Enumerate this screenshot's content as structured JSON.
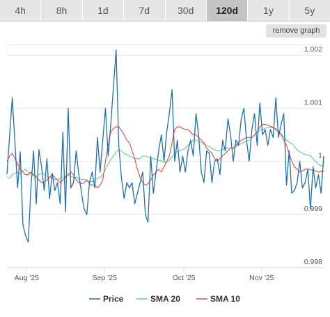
{
  "tabs": [
    {
      "label": "4h",
      "active": false
    },
    {
      "label": "8h",
      "active": false
    },
    {
      "label": "1d",
      "active": false
    },
    {
      "label": "7d",
      "active": false
    },
    {
      "label": "30d",
      "active": false
    },
    {
      "label": "120d",
      "active": true
    },
    {
      "label": "1y",
      "active": false
    },
    {
      "label": "5y",
      "active": false
    }
  ],
  "remove_graph_label": "remove graph",
  "chart_data": {
    "type": "line",
    "ylim": [
      0.998,
      1.0022
    ],
    "xlim": [
      0,
      120
    ],
    "y_ticks": [
      {
        "value": 0.998,
        "label": "0.998"
      },
      {
        "value": 0.999,
        "label": "0.999"
      },
      {
        "value": 1.0,
        "label": "1"
      },
      {
        "value": 1.001,
        "label": "1.001"
      },
      {
        "value": 1.002,
        "label": "1.002"
      }
    ],
    "x_ticks": [
      {
        "value": 7.5,
        "label": "Aug '25"
      },
      {
        "value": 37,
        "label": "Sep '25"
      },
      {
        "value": 67,
        "label": "Oct '25"
      },
      {
        "value": 96.5,
        "label": "Nov '25"
      }
    ],
    "grid": true,
    "legend_position": "bottom",
    "series": [
      {
        "name": "Price",
        "color": "#1f6fb0",
        "values": [
          0.99976,
          1.00048,
          1.0012,
          1.00034,
          0.9995,
          1.00018,
          0.9988,
          0.9986,
          0.99848,
          0.9995,
          1.0002,
          0.9992,
          1.00022,
          0.9999,
          0.99945,
          1.00005,
          0.9993,
          0.99978,
          0.99945,
          0.9996,
          0.9992,
          1.00055,
          0.99905,
          1.001,
          0.9995,
          0.9996,
          1.0002,
          0.99975,
          0.9994,
          0.9991,
          0.999,
          0.9996,
          0.9998,
          0.9995,
          1.00045,
          0.9998,
          1.0004,
          1.001,
          1.0001,
          1.0007,
          1.0014,
          1.0021,
          1.0003,
          0.9997,
          0.9993,
          0.9996,
          0.9995,
          0.9996,
          0.9992,
          0.9994,
          0.9996,
          0.9998,
          0.999,
          0.99885,
          1.0001,
          0.9994,
          0.9998,
          1.0002,
          1.0005,
          1.0,
          1.00055,
          1.0009,
          1.00135,
          1.0,
          1.0004,
          0.9998,
          1.0001,
          0.9998,
          1.0002,
          1.0004,
          1.0001,
          1.0009,
          1.0005,
          0.9998,
          0.9996,
          1.0002,
          1.00015,
          0.9996,
          1.0,
          1.00005,
          0.99975,
          1.0004,
          1.0002,
          1.0008,
          1.0005,
          1.0,
          1.0004,
          1.0003,
          1.0008,
          1.001,
          1.0004,
          1.0,
          1.0006,
          1.0009,
          1.0003,
          1.0011,
          1.0005,
          1.0006,
          1.0003,
          1.0006,
          1.00045,
          1.0012,
          1.00045,
          1.0007,
          1.0009,
          0.99955,
          1.0002,
          0.9994,
          0.99945,
          0.9996,
          1.0,
          0.9995,
          0.9996,
          0.99985,
          0.9991,
          0.9999,
          0.9995,
          0.99975,
          0.9994,
          1.0001
        ]
      },
      {
        "name": "SMA 20",
        "color": "#5fd08a",
        "values": [
          0.9997,
          0.99968,
          0.99975,
          0.99978,
          0.9998,
          0.99976,
          0.99982,
          0.99985,
          0.9998,
          0.99977,
          0.99973,
          0.99972,
          0.99975,
          0.99978,
          0.99976,
          0.99972,
          0.9997,
          0.99968,
          0.99966,
          0.99966,
          0.99968,
          0.9997,
          0.99972,
          0.99975,
          0.99972,
          0.9997,
          0.9997,
          0.99968,
          0.99966,
          0.99966,
          0.99965,
          0.99962,
          0.99962,
          0.99964,
          0.99968,
          0.9997,
          0.99975,
          0.99985,
          0.99995,
          1.00003,
          1.0001,
          1.00018,
          1.00022,
          1.0002,
          1.00015,
          1.00012,
          1.0001,
          1.00008,
          1.00005,
          1.00005,
          1.00005,
          1.0001,
          1.0001,
          1.00008,
          1.00006,
          1.00005,
          1.00004,
          1.00002,
          1.00001,
          0.99998,
          0.99998,
          1.00002,
          1.00008,
          1.00015,
          1.00018,
          1.0002,
          1.00022,
          1.00025,
          1.0003,
          1.00035,
          1.0004,
          1.0004,
          1.00038,
          1.00036,
          1.00033,
          1.0003,
          1.00028,
          1.00025,
          1.00022,
          1.0002,
          1.0002,
          1.00022,
          1.00024,
          1.00026,
          1.00025,
          1.00024,
          1.00028,
          1.0003,
          1.00034,
          1.00036,
          1.00038,
          1.0004,
          1.00045,
          1.0005,
          1.00055,
          1.00058,
          1.0006,
          1.00062,
          1.00064,
          1.00064,
          1.00063,
          1.00062,
          1.00057,
          1.00052,
          1.00046,
          1.0004,
          1.00036,
          1.00034,
          1.00028,
          1.00022,
          1.00018,
          1.00015,
          1.00013,
          1.00012,
          1.0001,
          1.00005,
          1.0,
          0.99994,
          0.99992,
          0.9999
        ]
      },
      {
        "name": "SMA 10",
        "color": "#e24a44",
        "values": [
          1.0,
          1.0001,
          1.00015,
          1.00005,
          0.99995,
          0.99985,
          0.9998,
          0.99975,
          0.99975,
          0.9998,
          0.99975,
          0.9997,
          0.99965,
          0.9996,
          0.9996,
          0.99965,
          0.9997,
          0.99975,
          0.9997,
          0.99965,
          0.9996,
          0.99965,
          0.9997,
          0.99975,
          0.9998,
          0.99975,
          0.99965,
          0.9996,
          0.99958,
          0.9996,
          0.99965,
          0.99958,
          0.99955,
          0.99955,
          0.9995,
          0.99955,
          0.99965,
          1.0,
          1.0003,
          1.00055,
          1.00062,
          1.00065,
          1.00065,
          1.00058,
          1.0005,
          1.0004,
          1.00035,
          1.0002,
          1.00005,
          0.99985,
          0.9997,
          0.9996,
          0.99955,
          0.99958,
          0.99965,
          0.99975,
          0.9998,
          0.99985,
          0.9998,
          0.9999,
          1.0,
          1.0001,
          1.00035,
          1.0006,
          1.00065,
          1.00065,
          1.00062,
          1.0006,
          1.0006,
          1.00055,
          1.0005,
          1.0005,
          1.00045,
          1.0004,
          1.00035,
          1.00025,
          1.0002,
          1.00015,
          1.00005,
          1.0,
          1.00005,
          1.0001,
          1.00015,
          1.0002,
          1.00025,
          1.00025,
          1.0003,
          1.00035,
          1.0004,
          1.00042,
          1.00045,
          1.00045,
          1.00045,
          1.0005,
          1.00055,
          1.00065,
          1.0007,
          1.0007,
          1.00068,
          1.00066,
          1.00064,
          1.0006,
          1.00055,
          1.0005,
          1.0004,
          1.0003,
          1.00015,
          1.0,
          0.9999,
          0.99985,
          0.9998,
          0.99982,
          0.99985,
          0.99986,
          0.99984,
          0.99984,
          0.99982,
          0.9998,
          0.99981,
          0.99982
        ]
      }
    ]
  }
}
